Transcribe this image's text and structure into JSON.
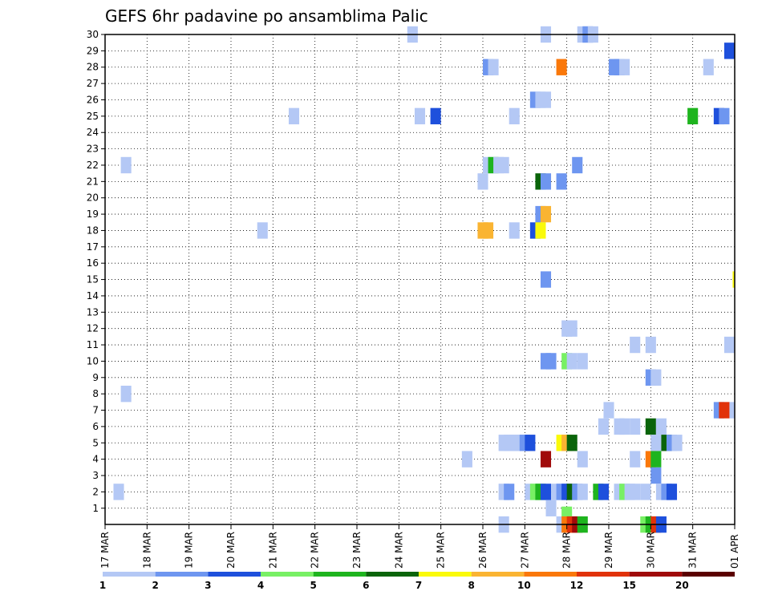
{
  "chart_data": {
    "type": "heatmap",
    "title": "GEFS 6hr padavine po ansamblima Palic",
    "xlabel": "",
    "ylabel": "",
    "x_tick_labels": [
      "17 MAR",
      "18 MAR",
      "19 MAR",
      "20 MAR",
      "21 MAR",
      "22 MAR",
      "23 MAR",
      "24 MAR",
      "25 MAR",
      "26 MAR",
      "27 MAR",
      "28 MAR",
      "29 MAR",
      "30 MAR",
      "31 MAR",
      "01 APR"
    ],
    "x_range_steps": [
      0,
      60
    ],
    "y_tick_labels": [
      "1",
      "2",
      "3",
      "4",
      "5",
      "6",
      "7",
      "8",
      "9",
      "10",
      "11",
      "12",
      "13",
      "14",
      "15",
      "16",
      "17",
      "18",
      "19",
      "20",
      "21",
      "22",
      "23",
      "24",
      "25",
      "26",
      "27",
      "28",
      "29",
      "30"
    ],
    "y_range": [
      0,
      30
    ],
    "grid": true,
    "colorbar": {
      "labels": [
        "1",
        "2",
        "3",
        "4",
        "5",
        "6",
        "7",
        "8",
        "10",
        "12",
        "15",
        "20"
      ],
      "colors": [
        "#b4c8f5",
        "#6e96f0",
        "#1e50dc",
        "#78f064",
        "#1eb41e",
        "#0a640a",
        "#fafa0a",
        "#fab432",
        "#fa780a",
        "#e1320a",
        "#a00a0a",
        "#5a0000"
      ]
    },
    "cells": [
      [
        28.8,
        30,
        1
      ],
      [
        41.5,
        30,
        1
      ],
      [
        45,
        30,
        1
      ],
      [
        45.5,
        30,
        2
      ],
      [
        46,
        30,
        1
      ],
      [
        59,
        29,
        3
      ],
      [
        36,
        28,
        2
      ],
      [
        36.5,
        28,
        1
      ],
      [
        43,
        28,
        9
      ],
      [
        48,
        28,
        2
      ],
      [
        48.5,
        28,
        2
      ],
      [
        49,
        28,
        1
      ],
      [
        57,
        28,
        1
      ],
      [
        40.5,
        26,
        2
      ],
      [
        41,
        26,
        1
      ],
      [
        41.5,
        26,
        1
      ],
      [
        17.5,
        25,
        1
      ],
      [
        29.5,
        25,
        1
      ],
      [
        31,
        25,
        3
      ],
      [
        38.5,
        25,
        1
      ],
      [
        55.5,
        25,
        5
      ],
      [
        58,
        25,
        3
      ],
      [
        58.5,
        25,
        2
      ],
      [
        1.5,
        22,
        1
      ],
      [
        36,
        22,
        1
      ],
      [
        36.5,
        22,
        5
      ],
      [
        37,
        22,
        1
      ],
      [
        37.5,
        22,
        1
      ],
      [
        44.5,
        22,
        2
      ],
      [
        35.5,
        21,
        1
      ],
      [
        41,
        21,
        6
      ],
      [
        41.5,
        21,
        2
      ],
      [
        43,
        21,
        2
      ],
      [
        41,
        19,
        2
      ],
      [
        41.5,
        19,
        8
      ],
      [
        14.5,
        18,
        1
      ],
      [
        35.5,
        18,
        8
      ],
      [
        36,
        18,
        8
      ],
      [
        38.5,
        18,
        1
      ],
      [
        40.5,
        18,
        3
      ],
      [
        41,
        18,
        7
      ],
      [
        41.5,
        15,
        2
      ],
      [
        59.8,
        15,
        7
      ],
      [
        43.5,
        12,
        1
      ],
      [
        44,
        12,
        1
      ],
      [
        50,
        11,
        1
      ],
      [
        51.5,
        11,
        1
      ],
      [
        59,
        11,
        1
      ],
      [
        41.5,
        10,
        2
      ],
      [
        42,
        10,
        2
      ],
      [
        43.5,
        10,
        4
      ],
      [
        44,
        10,
        1
      ],
      [
        45,
        10,
        1
      ],
      [
        51.5,
        9,
        2
      ],
      [
        52,
        9,
        1
      ],
      [
        1.5,
        8,
        1
      ],
      [
        47.5,
        7,
        1
      ],
      [
        58,
        7,
        2
      ],
      [
        58.5,
        7,
        10
      ],
      [
        59.5,
        7,
        1
      ],
      [
        47,
        6,
        1
      ],
      [
        48.5,
        6,
        1
      ],
      [
        49,
        6,
        1
      ],
      [
        50,
        6,
        1
      ],
      [
        51.5,
        6,
        6
      ],
      [
        52.5,
        6,
        1
      ],
      [
        37.5,
        5,
        1
      ],
      [
        38,
        5,
        1
      ],
      [
        38.5,
        5,
        1
      ],
      [
        39,
        5,
        1
      ],
      [
        39.5,
        5,
        2
      ],
      [
        40,
        5,
        3
      ],
      [
        43,
        5,
        7
      ],
      [
        43.5,
        5,
        8
      ],
      [
        44,
        5,
        6
      ],
      [
        52,
        5,
        1
      ],
      [
        53,
        5,
        6
      ],
      [
        53.5,
        5,
        2
      ],
      [
        54,
        5,
        1
      ],
      [
        34,
        4,
        1
      ],
      [
        41.5,
        4,
        11
      ],
      [
        45,
        4,
        1
      ],
      [
        50,
        4,
        1
      ],
      [
        51.5,
        4,
        9
      ],
      [
        52,
        4,
        5
      ],
      [
        52,
        3,
        2
      ],
      [
        0.8,
        2,
        1
      ],
      [
        37.5,
        2,
        1
      ],
      [
        38,
        2,
        2
      ],
      [
        40,
        2,
        1
      ],
      [
        40.5,
        2,
        4
      ],
      [
        41,
        2,
        5
      ],
      [
        41.5,
        2,
        3
      ],
      [
        42.5,
        2,
        1
      ],
      [
        43,
        2,
        2
      ],
      [
        43.5,
        2,
        3
      ],
      [
        44,
        2,
        6
      ],
      [
        44.5,
        2,
        2
      ],
      [
        45,
        2,
        1
      ],
      [
        46.5,
        2,
        5
      ],
      [
        47,
        2,
        3
      ],
      [
        48.5,
        2,
        1
      ],
      [
        49,
        2,
        4
      ],
      [
        49.5,
        2,
        1
      ],
      [
        50,
        2,
        1
      ],
      [
        51,
        2,
        1
      ],
      [
        52.5,
        2,
        1
      ],
      [
        53,
        2,
        2
      ],
      [
        53.5,
        2,
        3
      ],
      [
        42,
        1,
        1
      ],
      [
        43.5,
        0.6,
        4
      ],
      [
        37.5,
        0,
        1
      ],
      [
        43,
        0,
        1
      ],
      [
        43.5,
        0,
        9
      ],
      [
        44,
        0,
        10
      ],
      [
        44.5,
        0,
        11
      ],
      [
        45,
        0,
        5
      ],
      [
        51,
        0,
        4
      ],
      [
        51.5,
        0,
        5
      ],
      [
        52,
        0,
        10
      ],
      [
        52.5,
        0,
        3
      ]
    ]
  }
}
